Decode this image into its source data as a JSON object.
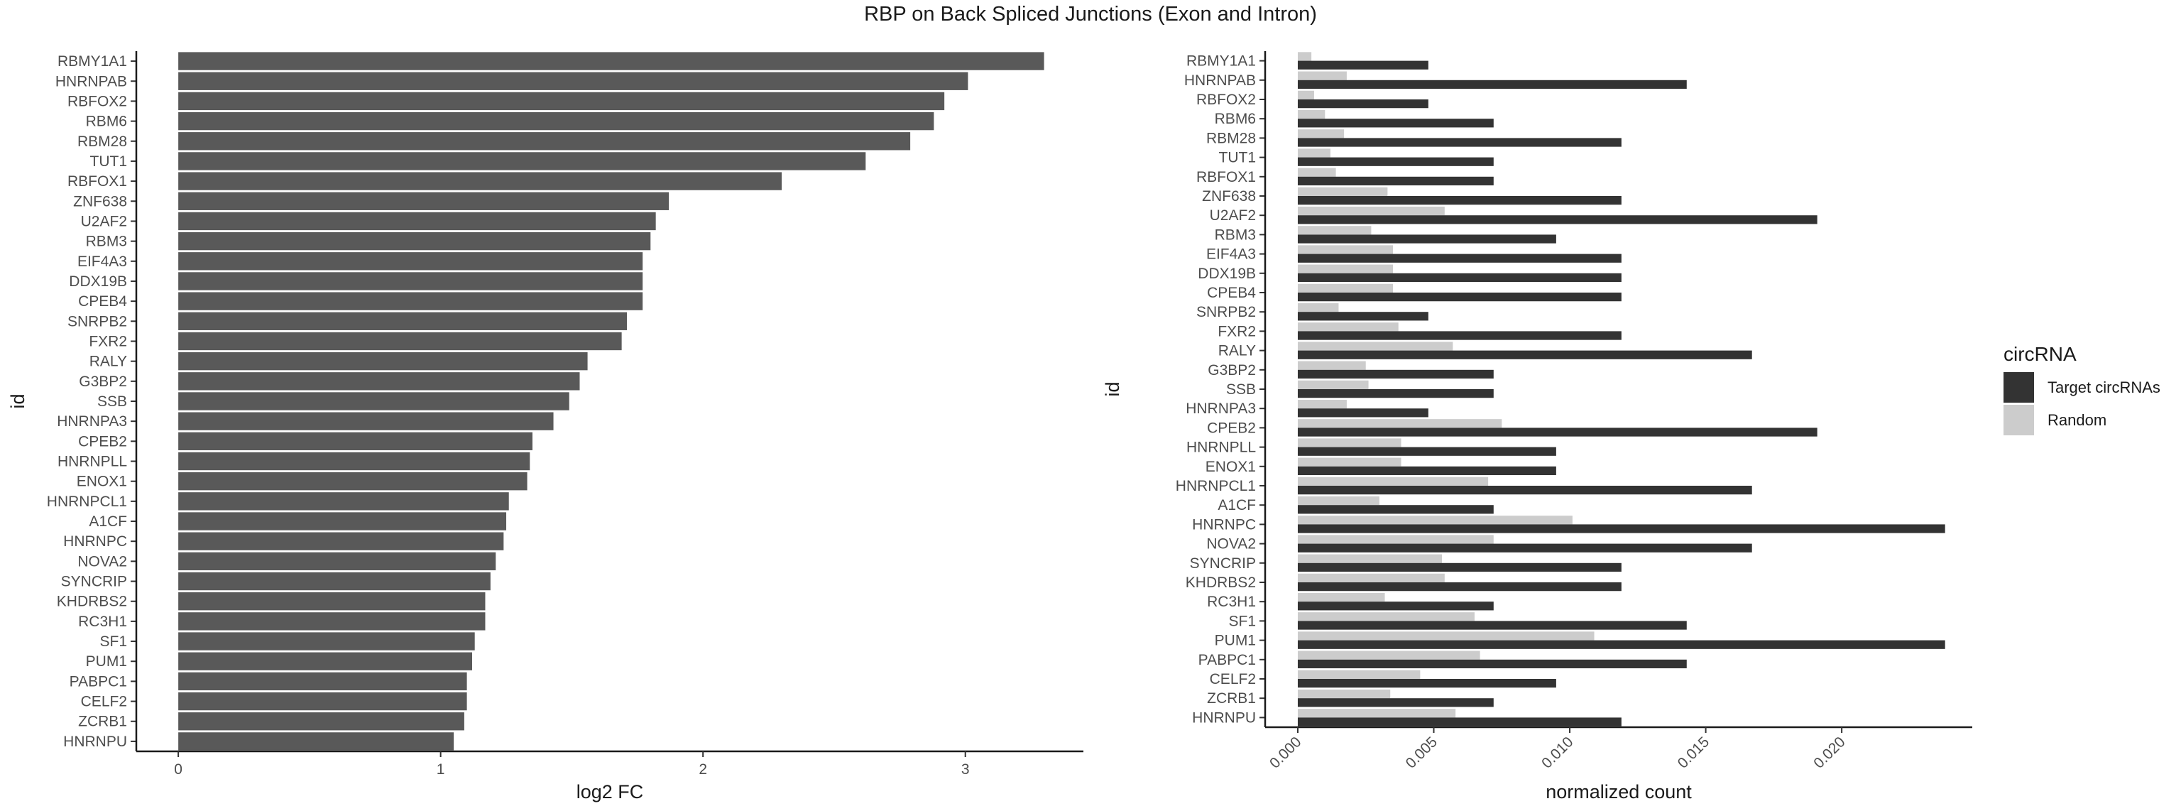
{
  "figure": {
    "title": "RBP on Back Spliced Junctions (Exon and Intron)"
  },
  "chart_data": [
    {
      "type": "bar",
      "orientation": "horizontal",
      "title": "",
      "xlabel": "log2 FC",
      "ylabel": "id",
      "xlim": [
        -0.16,
        3.45
      ],
      "xticks": [
        "0",
        "1",
        "2",
        "3"
      ],
      "grid": false,
      "bar_color": "#595959",
      "categories": [
        "RBMY1A1",
        "HNRNPAB",
        "RBFOX2",
        "RBM6",
        "RBM28",
        "TUT1",
        "RBFOX1",
        "ZNF638",
        "U2AF2",
        "RBM3",
        "EIF4A3",
        "DDX19B",
        "CPEB4",
        "SNRPB2",
        "FXR2",
        "RALY",
        "G3BP2",
        "SSB",
        "HNRNPA3",
        "CPEB2",
        "HNRNPLL",
        "ENOX1",
        "HNRNPCL1",
        "A1CF",
        "HNRNPC",
        "NOVA2",
        "SYNCRIP",
        "KHDRBS2",
        "RC3H1",
        "SF1",
        "PUM1",
        "PABPC1",
        "CELF2",
        "ZCRB1",
        "HNRNPU"
      ],
      "values": [
        3.3,
        3.01,
        2.92,
        2.88,
        2.79,
        2.62,
        2.3,
        1.87,
        1.82,
        1.8,
        1.77,
        1.77,
        1.77,
        1.71,
        1.69,
        1.56,
        1.53,
        1.49,
        1.43,
        1.35,
        1.34,
        1.33,
        1.26,
        1.25,
        1.24,
        1.21,
        1.19,
        1.17,
        1.17,
        1.13,
        1.12,
        1.1,
        1.1,
        1.09,
        1.05
      ]
    },
    {
      "type": "bar",
      "orientation": "horizontal",
      "title": "",
      "xlabel": "normalized count",
      "ylabel": "id",
      "xlim": [
        -0.0012,
        0.0248
      ],
      "xticks": [
        "0.000",
        "0.005",
        "0.010",
        "0.015",
        "0.020"
      ],
      "grid": false,
      "legend": {
        "title": "circRNA",
        "position": "right"
      },
      "categories": [
        "RBMY1A1",
        "HNRNPAB",
        "RBFOX2",
        "RBM6",
        "RBM28",
        "TUT1",
        "RBFOX1",
        "ZNF638",
        "U2AF2",
        "RBM3",
        "EIF4A3",
        "DDX19B",
        "CPEB4",
        "SNRPB2",
        "FXR2",
        "RALY",
        "G3BP2",
        "SSB",
        "HNRNPA3",
        "CPEB2",
        "HNRNPLL",
        "ENOX1",
        "HNRNPCL1",
        "A1CF",
        "HNRNPC",
        "NOVA2",
        "SYNCRIP",
        "KHDRBS2",
        "RC3H1",
        "SF1",
        "PUM1",
        "PABPC1",
        "CELF2",
        "ZCRB1",
        "HNRNPU"
      ],
      "series": [
        {
          "name": "Target circRNAs",
          "color": "#333333",
          "values": [
            0.0048,
            0.0143,
            0.0048,
            0.0072,
            0.0119,
            0.0072,
            0.0072,
            0.0119,
            0.0191,
            0.0095,
            0.0119,
            0.0119,
            0.0119,
            0.0048,
            0.0119,
            0.0167,
            0.0072,
            0.0072,
            0.0048,
            0.0191,
            0.0095,
            0.0095,
            0.0167,
            0.0072,
            0.0238,
            0.0167,
            0.0119,
            0.0119,
            0.0072,
            0.0143,
            0.0238,
            0.0143,
            0.0095,
            0.0072,
            0.0119
          ]
        },
        {
          "name": "Random",
          "color": "#cccccc",
          "values": [
            0.0005,
            0.0018,
            0.0006,
            0.001,
            0.0017,
            0.0012,
            0.0014,
            0.0033,
            0.0054,
            0.0027,
            0.0035,
            0.0035,
            0.0035,
            0.0015,
            0.0037,
            0.0057,
            0.0025,
            0.0026,
            0.0018,
            0.0075,
            0.0038,
            0.0038,
            0.007,
            0.003,
            0.0101,
            0.0072,
            0.0053,
            0.0054,
            0.0032,
            0.0065,
            0.0109,
            0.0067,
            0.0045,
            0.0034,
            0.0058
          ]
        }
      ]
    }
  ]
}
